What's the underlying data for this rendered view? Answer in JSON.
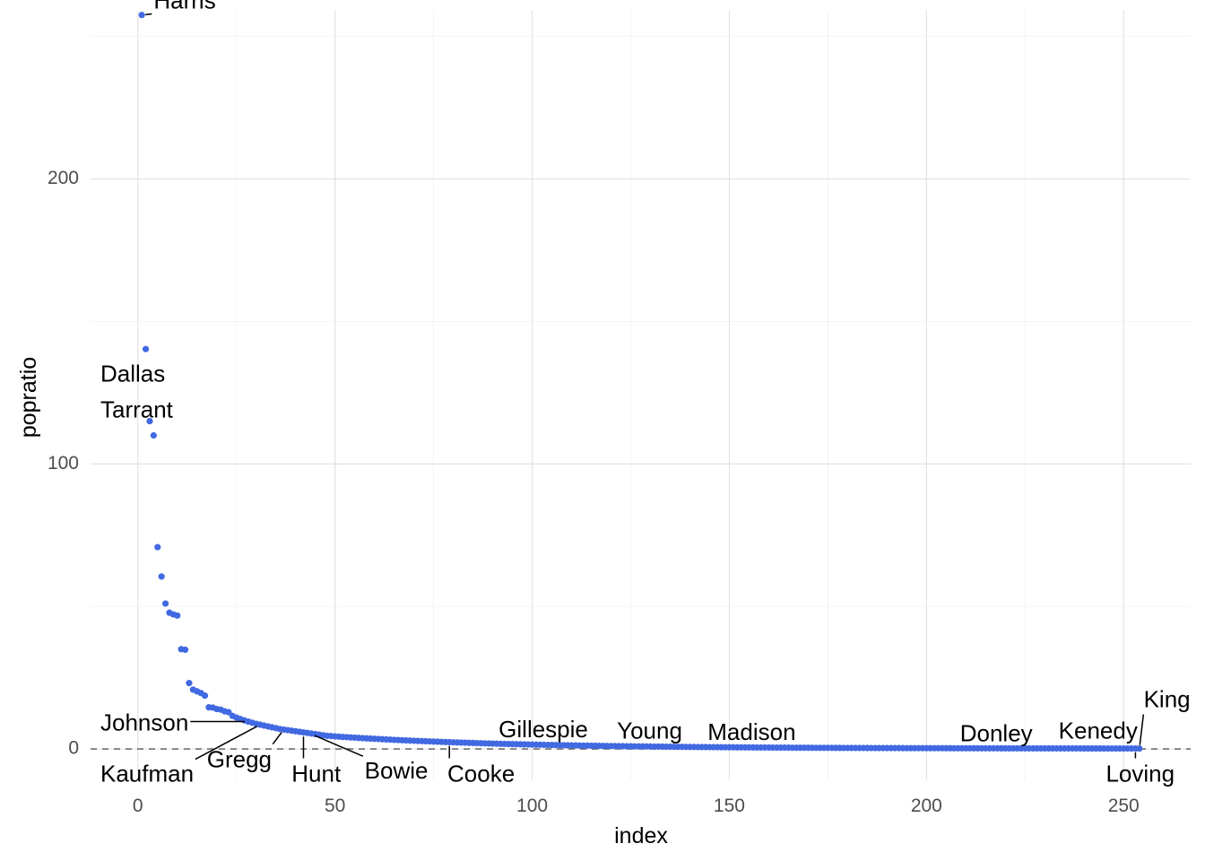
{
  "chart_data": {
    "type": "scatter",
    "title": "",
    "xlabel": "index",
    "ylabel": "popratio",
    "xlim": [
      -12,
      267
    ],
    "ylim": [
      -11,
      259
    ],
    "x_ticks": [
      0,
      50,
      100,
      150,
      200,
      250
    ],
    "y_ticks": [
      0,
      100,
      200
    ],
    "x_tick_labels": [
      "0",
      "50",
      "100",
      "150",
      "200",
      "250"
    ],
    "y_tick_labels": [
      "0",
      "100",
      "200"
    ],
    "grid": true,
    "reference_line": {
      "y": 0,
      "style": "dashed"
    },
    "point_color": "#4169E1",
    "n_points": 254,
    "y_head": [
      257.5,
      140.3,
      115.0,
      110.0,
      70.8,
      60.5,
      51.0,
      47.8,
      47.2,
      46.8,
      35.0,
      34.8,
      23.1,
      20.8,
      20.2,
      19.6,
      18.7,
      14.6,
      14.5,
      14.0,
      13.8,
      13.2,
      12.9,
      11.6,
      11.0,
      10.5,
      10.0,
      9.6,
      9.2,
      8.8,
      8.5,
      8.2,
      7.9,
      7.6,
      7.3,
      7.0,
      6.8,
      6.6,
      6.4,
      6.2,
      6.0,
      5.8,
      5.6,
      5.4,
      5.2,
      5.0,
      4.8,
      4.6,
      4.5,
      4.4
    ],
    "tail": {
      "start_index": 51,
      "start_value": 4.3,
      "end_value": 0.1,
      "decay": 0.022
    },
    "annotations": [
      {
        "label": "Harris",
        "x": 1,
        "y": 257.5,
        "tx": 4,
        "ty": 262,
        "anchor": "start",
        "line": true
      },
      {
        "label": "Dallas",
        "x": 2,
        "y": 140.3,
        "tx": -9.5,
        "ty": 131,
        "anchor": "start",
        "line": false
      },
      {
        "label": "Tarrant",
        "x": 3,
        "y": 115.0,
        "tx": -9.5,
        "ty": 118.5,
        "anchor": "start",
        "line": true
      },
      {
        "label": "Johnson",
        "x": 28,
        "y": 9.6,
        "tx": -9.5,
        "ty": 8.7,
        "anchor": "start",
        "line": true
      },
      {
        "label": "Kaufman",
        "x": 31,
        "y": 8.5,
        "tx": -9.5,
        "ty": -9.3,
        "anchor": "start",
        "line": true
      },
      {
        "label": "Gregg",
        "x": 37,
        "y": 6.8,
        "tx": 17.5,
        "ty": -4.2,
        "anchor": "start",
        "line": true
      },
      {
        "label": "Hunt",
        "x": 42,
        "y": 5.6,
        "tx": 39,
        "ty": -9.3,
        "anchor": "start",
        "line": true
      },
      {
        "label": "Bowie",
        "x": 44,
        "y": 5.2,
        "tx": 57.5,
        "ty": -8.2,
        "anchor": "start",
        "line": true
      },
      {
        "label": "Cooke",
        "x": 79,
        "y": 2.3,
        "tx": 78.5,
        "ty": -9.3,
        "anchor": "start",
        "line": true
      },
      {
        "label": "Gillespie",
        "x": 99,
        "y": 1.5,
        "tx": 91.5,
        "ty": 6.3,
        "anchor": "start",
        "line": true
      },
      {
        "label": "Young",
        "x": 131,
        "y": 1.0,
        "tx": 121.5,
        "ty": 5.8,
        "anchor": "start",
        "line": true
      },
      {
        "label": "Madison",
        "x": 148,
        "y": 0.8,
        "tx": 144.5,
        "ty": 5.3,
        "anchor": "start",
        "line": true
      },
      {
        "label": "Donley",
        "x": 218,
        "y": 0.6,
        "tx": 208.5,
        "ty": 4.9,
        "anchor": "start",
        "line": true
      },
      {
        "label": "Kenedy",
        "x": 250,
        "y": 0.5,
        "tx": 233.5,
        "ty": 5.8,
        "anchor": "start",
        "line": true
      },
      {
        "label": "King",
        "x": 254,
        "y": 0.1,
        "tx": 261,
        "ty": 16.8,
        "anchor": "middle",
        "line": true
      },
      {
        "label": "Loving",
        "x": 253,
        "y": 0.1,
        "tx": 245.5,
        "ty": -9.3,
        "anchor": "start",
        "line": true
      }
    ]
  }
}
